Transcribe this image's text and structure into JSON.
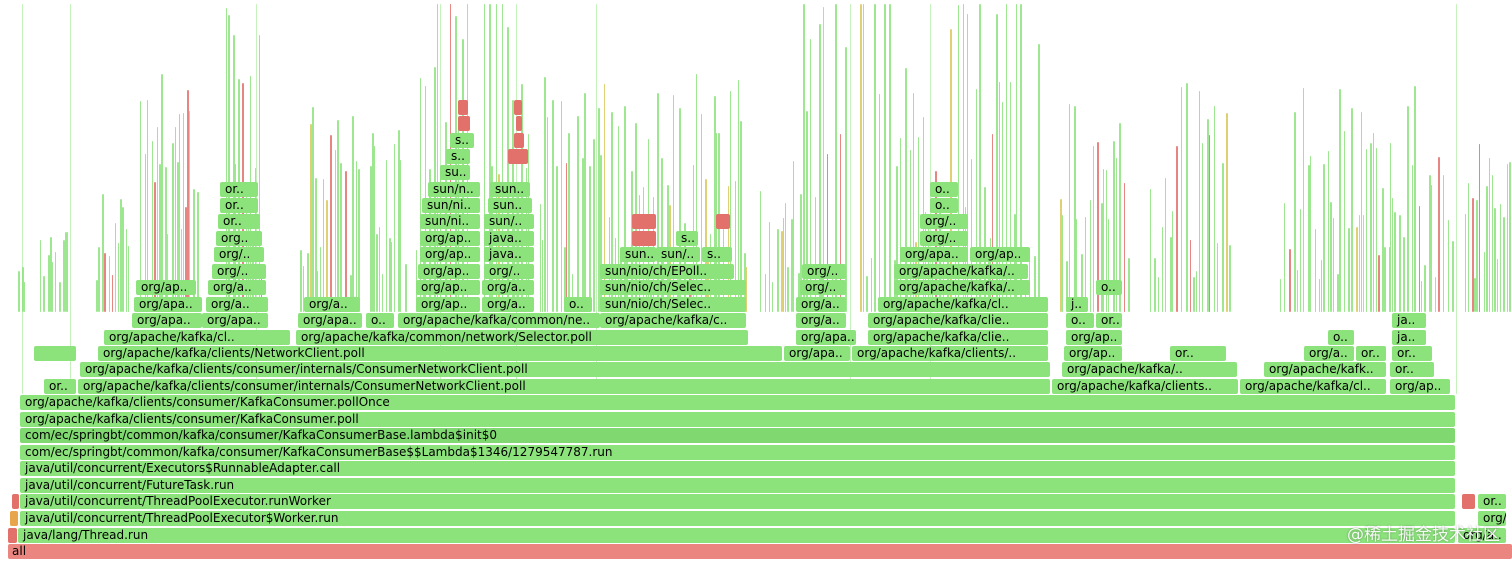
{
  "colors": {
    "green": "#8ce37c",
    "green_dark": "#7fd970",
    "red": "#e2706b",
    "root": "#eb8580",
    "yellow": "#d9c95a",
    "orange": "#e8a64c"
  },
  "watermark": "@稀土掘金技术社区",
  "frames": {
    "all": "all",
    "thread_run": "java/lang/Thread.run",
    "worker_run": "java/util/concurrent/ThreadPoolExecutor$Worker.run",
    "run_worker": "java/util/concurrent/ThreadPoolExecutor.runWorker",
    "future_task": "java/util/concurrent/FutureTask.run",
    "runnable_adapter": "java/util/concurrent/Executors$RunnableAdapter.call",
    "lambda_run": "com/ec/springbt/common/kafka/consumer/KafkaConsumerBase$$Lambda$1346/1279547787.run",
    "lambda_init": "com/ec/springbt/common/kafka/consumer/KafkaConsumerBase.lambda$init$0",
    "kafka_poll": "org/apache/kafka/clients/consumer/KafkaConsumer.poll",
    "kafka_poll_once": "org/apache/kafka/clients/consumer/KafkaConsumer.pollOnce",
    "cnc_poll_1": "org/apache/kafka/clients/consumer/internals/ConsumerNetworkClient.poll",
    "cnc_poll_2": "org/apache/kafka/clients/consumer/internals/ConsumerNetworkClient.poll",
    "network_client_poll": "org/apache/kafka/clients/NetworkClient.poll",
    "selector_poll": "org/apache/kafka/common/network/Selector.poll",
    "common_ne": "org/apache/kafka/common/ne..",
    "apache_kafka_c": "org/apache/kafka/c..",
    "sun_nio_selec_1": "sun/nio/ch/Selec..",
    "sun_nio_selec_2": "sun/nio/ch/Selec..",
    "sun_nio_epoll": "sun/nio/ch/EPoll..",
    "right_kafka_clients_1": "org/apache/kafka/clients..",
    "right_kafka_cl": "org/apache/kafka/cl..",
    "right_kafk": "org/apache/kafk..",
    "right_apach": "org/apach..",
    "mid_kafka_clients": "org/apache/kafka/clients/..",
    "mid_kafka_clie_1": "org/apache/kafka/clie..",
    "mid_kafka_clie_2": "org/apache/kafka/clie..",
    "mid_kafka_cl": "org/apache/kafka/cl..",
    "mid_kafka_dots": "org/apache/kafka/..",
    "or_short": "or..",
    "o_short": "o..",
    "org_apa": "org/apa..",
    "org_ap": "org/ap..",
    "org_a": "org/a..",
    "org_slash": "org/..",
    "org_apache_kafka_cl": "org/apache/kafka/cl..",
    "sun_short": "sun..",
    "sun_slash": "sun/..",
    "sun_ni": "sun/ni..",
    "sun_n": "sun/n..",
    "java_short": "java..",
    "s_short": "s..",
    "su_short": "su..",
    "j_short": "j..",
    "ja_short": "ja..",
    "org_dot": "org..",
    "org_o": "org/..",
    "org_d": "org/d..",
    "org_ap_tail": "org/ap..",
    "org_a_tail": "org/a..",
    "or_tail": "or..",
    "org_apache_tail": "org/a.."
  }
}
